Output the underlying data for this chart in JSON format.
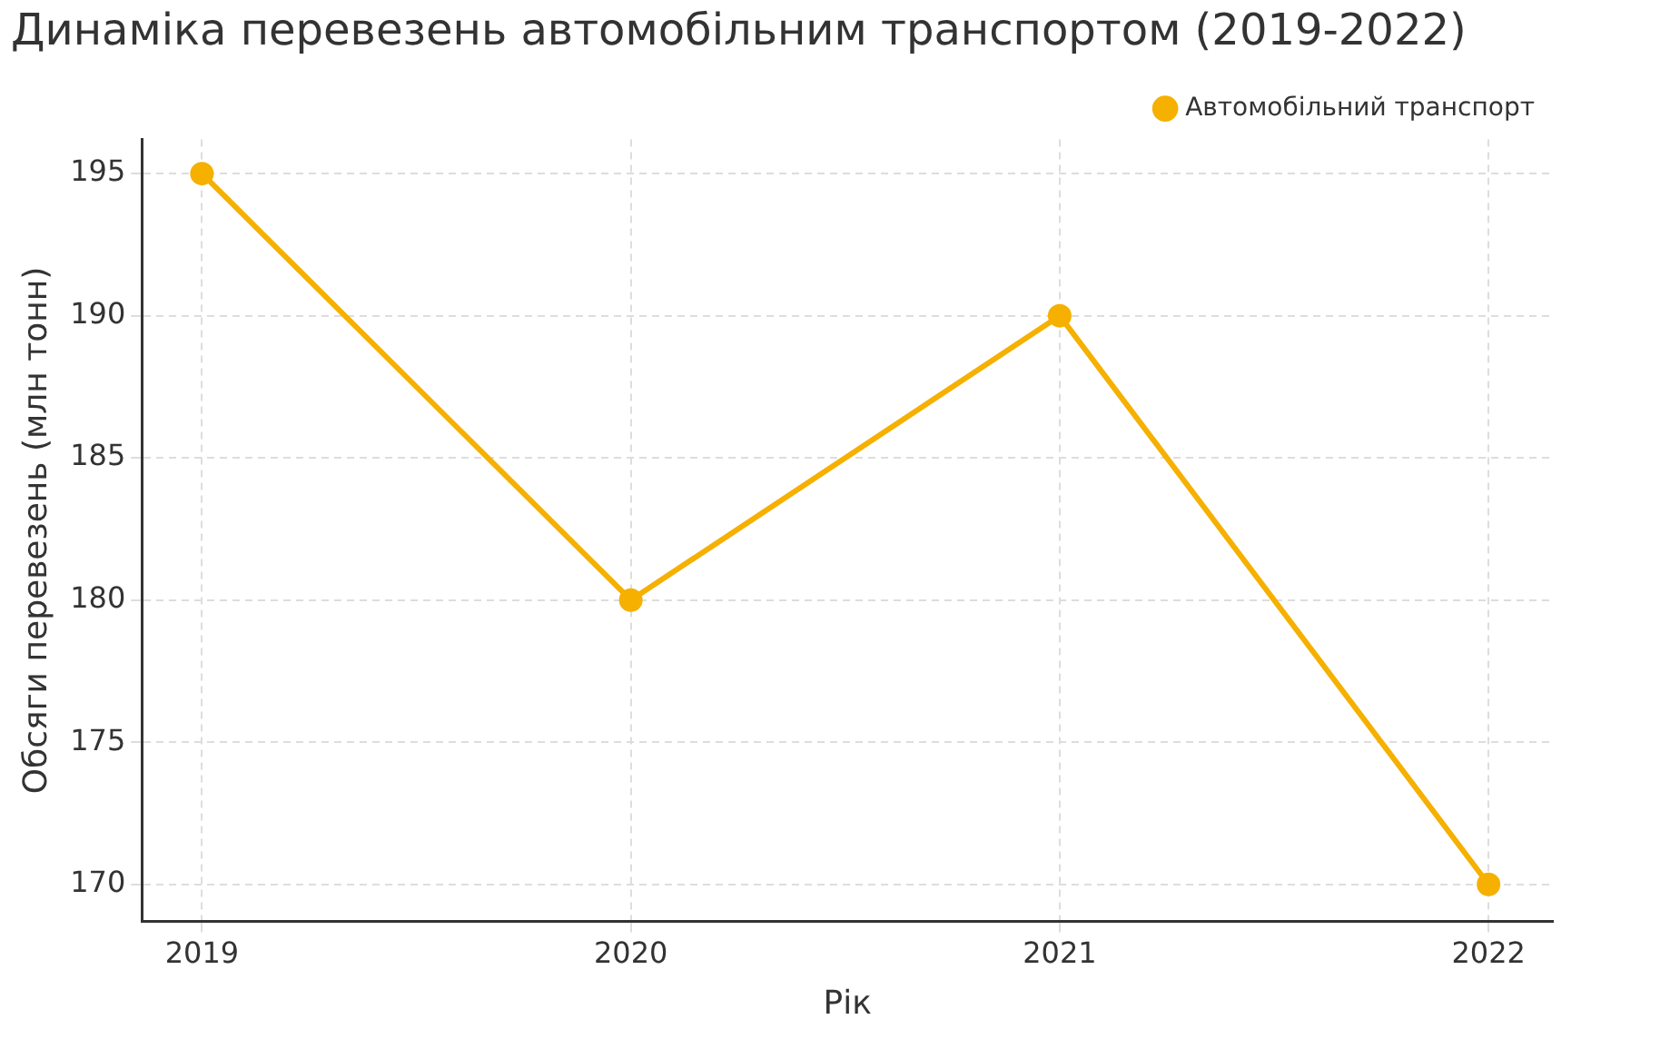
{
  "chart_data": {
    "type": "line",
    "title": "Динаміка перевезень автомобільним транспортом (2019-2022)",
    "xlabel": "Рік",
    "ylabel": "Обсяги перевезень (млн тонн)",
    "x": [
      2019,
      2020,
      2021,
      2022
    ],
    "series": [
      {
        "name": "Автомобільний транспорт",
        "color": "#f5b000",
        "values": [
          195,
          180,
          190,
          170
        ]
      }
    ],
    "xlim": [
      2018.86,
      2022.15
    ],
    "xticks": [
      2019,
      2020,
      2021,
      2022
    ],
    "ylim": [
      168.7,
      196.2
    ],
    "yticks": [
      170,
      175,
      180,
      185,
      190,
      195
    ],
    "grid": true,
    "legend": "top right",
    "marker": "circle",
    "line_style": "solid"
  }
}
